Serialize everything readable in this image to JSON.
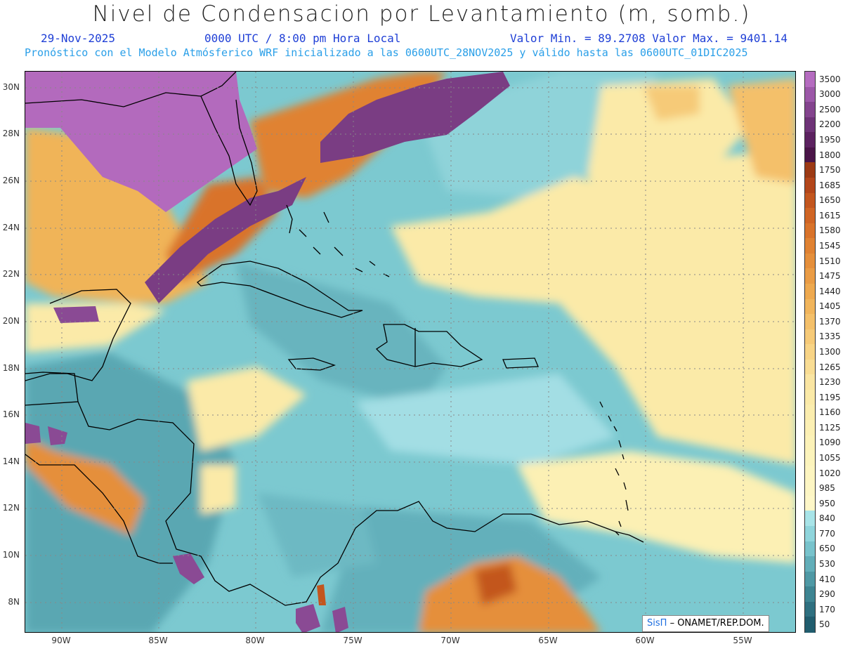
{
  "header": {
    "title": "Nivel de Condensacion por Levantamiento (m, somb.)",
    "date": "29-Nov-2025",
    "time": "0000 UTC / 8:00 pm Hora Local",
    "min_max": "Valor Min. = 89.2708  Valor Max. = 9401.14",
    "model_info": "Pronóstico con el Modelo Atmósferico WRF inicializado a las 0600UTC_28NOV2025 y válido hasta las  0600UTC_01DIC2025"
  },
  "axes": {
    "lat_labels": [
      "30N",
      "28N",
      "26N",
      "24N",
      "22N",
      "20N",
      "18N",
      "16N",
      "14N",
      "12N",
      "10N",
      "8N"
    ],
    "lon_labels": [
      "90W",
      "85W",
      "80W",
      "75W",
      "70W",
      "65W",
      "60W",
      "55W"
    ]
  },
  "colorbar": {
    "labels": [
      "3500",
      "3000",
      "2500",
      "2200",
      "1950",
      "1800",
      "1750",
      "1685",
      "1650",
      "1615",
      "1580",
      "1545",
      "1510",
      "1475",
      "1440",
      "1405",
      "1370",
      "1335",
      "1300",
      "1265",
      "1230",
      "1195",
      "1160",
      "1125",
      "1090",
      "1055",
      "1020",
      "985",
      "950",
      "840",
      "770",
      "650",
      "530",
      "410",
      "290",
      "170",
      "50"
    ],
    "colors": [
      "#b56cc0",
      "#9c58a8",
      "#84448e",
      "#6e3377",
      "#5c2260",
      "#4a1548",
      "#9c3a14",
      "#b3461a",
      "#c3561e",
      "#d06524",
      "#d9732a",
      "#e08232",
      "#e58f3b",
      "#ea9c45",
      "#eea94f",
      "#f1b55c",
      "#f4c06a",
      "#f6ca78",
      "#f8d486",
      "#f9dd94",
      "#fae5a2",
      "#fbeaa8",
      "#fbedae",
      "#fcf0b4",
      "#fcf2b8",
      "#fcf4bc",
      "#fdf5c0",
      "#fdf6c4",
      "#fef7c8",
      "#a8e4e8",
      "#8fd5dc",
      "#78c3cc",
      "#62aeb9",
      "#4f99a5",
      "#3e8592",
      "#2f7080",
      "#215d6e"
    ]
  },
  "map": {
    "gridlines": true,
    "land_overlay_color": "#b36abd",
    "sea_base_color": "#7cc9d0"
  },
  "credit": {
    "logo_text": "SisΠ",
    "text": "– ONAMET/REP.DOM."
  }
}
